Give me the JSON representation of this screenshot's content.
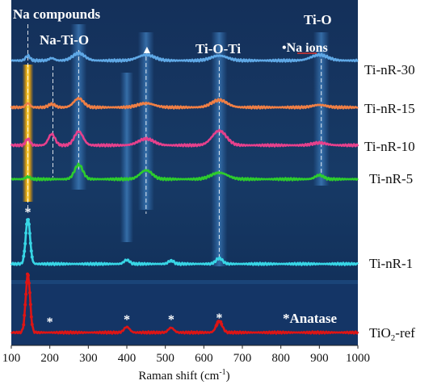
{
  "chart_data": {
    "type": "line",
    "xlabel": "Raman shift (cm",
    "xlabel_sup": "-1",
    "xlabel_tail": ")",
    "xlim": [
      100,
      1000
    ],
    "xticks": [
      "100",
      "200",
      "300",
      "400",
      "500",
      "600",
      "700",
      "800",
      "900",
      "1000"
    ],
    "x_values": [
      100,
      200,
      300,
      400,
      500,
      600,
      700,
      800,
      900,
      1000
    ],
    "series": [
      {
        "name": "Ti-nR-30",
        "color": "#5fa8e6",
        "baseline": 75,
        "peaks": [
          [
            143,
            6,
            8
          ],
          [
            205,
            3,
            10
          ],
          [
            275,
            9,
            22
          ],
          [
            450,
            7,
            30
          ],
          [
            640,
            6,
            30
          ],
          [
            900,
            7,
            30
          ]
        ]
      },
      {
        "name": "Ti-nR-15",
        "color": "#ef7f45",
        "baseline": 133,
        "peaks": [
          [
            143,
            5,
            8
          ],
          [
            205,
            4,
            12
          ],
          [
            275,
            11,
            18
          ],
          [
            450,
            5,
            30
          ],
          [
            640,
            9,
            28
          ],
          [
            900,
            3,
            25
          ]
        ]
      },
      {
        "name": "Ti-nR-10",
        "color": "#e6418c",
        "baseline": 180,
        "peaks": [
          [
            143,
            8,
            8
          ],
          [
            205,
            14,
            12
          ],
          [
            275,
            17,
            16
          ],
          [
            450,
            8,
            28
          ],
          [
            640,
            18,
            26
          ],
          [
            900,
            3,
            25
          ]
        ]
      },
      {
        "name": "Ti-nR-5",
        "color": "#2dcc2d",
        "baseline": 222,
        "peaks": [
          [
            143,
            3,
            8
          ],
          [
            275,
            18,
            15
          ],
          [
            450,
            11,
            22
          ],
          [
            640,
            8,
            30
          ],
          [
            900,
            5,
            15
          ]
        ]
      },
      {
        "name": "Ti-nR-1",
        "color": "#38d6e6",
        "baseline": 327,
        "peaks": [
          [
            143,
            56,
            8
          ],
          [
            400,
            5,
            10
          ],
          [
            515,
            4,
            10
          ],
          [
            640,
            7,
            12
          ]
        ]
      },
      {
        "name": "TiO₂-ref",
        "color": "#dd1515",
        "baseline": 412,
        "peaks": [
          [
            143,
            72,
            8
          ],
          [
            400,
            7,
            10
          ],
          [
            515,
            6,
            10
          ],
          [
            640,
            14,
            11
          ]
        ]
      }
    ],
    "annotations": {
      "na_compounds": "Na compounds",
      "na_ti_o": "Na-Ti-O",
      "ti_o_ti": "Ti-O-Ti",
      "ti_o": "Ti-O",
      "na_ions": "•Na ions",
      "anatase": "*Anatase",
      "triangle": "▲",
      "star": "*"
    },
    "star_positions": [
      143,
      200,
      400,
      515,
      640
    ],
    "dashed_lines": [
      143,
      208,
      275,
      450,
      640,
      905
    ]
  },
  "labels": {
    "ti_nr_30": "Ti-nR-30",
    "ti_nr_15": "Ti-nR-15",
    "ti_nr_10": "Ti-nR-10",
    "ti_nr_5": "Ti-nR-5",
    "ti_nr_1": "Ti-nR-1",
    "tio2_ref_main": "TiO",
    "tio2_ref_sub": "2",
    "tio2_ref_tail": "-ref"
  }
}
